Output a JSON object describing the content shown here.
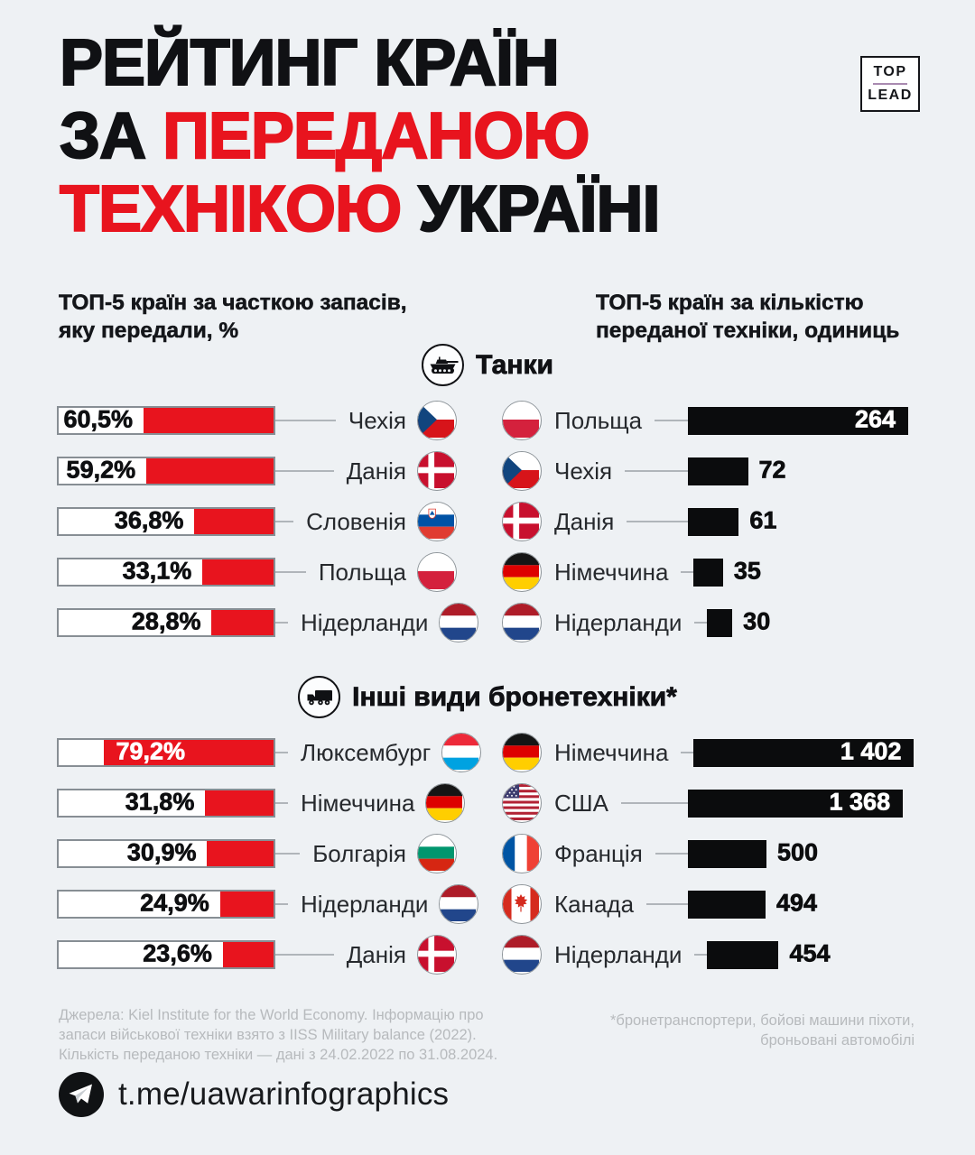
{
  "title": {
    "line1_black": "РЕЙТИНГ КРАЇН",
    "line2_black": "ЗА ",
    "line2_red": "ПЕРЕДАНОЮ",
    "line3_red": "ТЕХНІКОЮ ",
    "line3_black": "УКРАЇНІ"
  },
  "logo": {
    "top": "TOP",
    "lead": "LEAD"
  },
  "col_headers": {
    "left1": "ТОП-5 країн за часткою запасів,",
    "left2": "яку передали, %",
    "right1": "ТОП-5 країн за кількістю",
    "right2": "переданої техніки, одиниць"
  },
  "sections": {
    "tanks_title": "Танки",
    "armor_title": "Інші види бронетехніки*"
  },
  "colors": {
    "background": "#eef1f4",
    "red": "#e8141e",
    "black_bar": "#0b0c0d",
    "muted_gray": "#b7babd"
  },
  "chart_data": [
    {
      "id": "tanks_share",
      "kind": "share",
      "type": "bar",
      "title": "Танки — ТОП-5 країн за часткою запасів, яку передали, %",
      "categories": [
        "Чехія",
        "Данія",
        "Словенія",
        "Польща",
        "Нідерланди"
      ],
      "values": [
        60.5,
        59.2,
        36.8,
        33.1,
        28.8
      ],
      "value_labels": [
        "60,5%",
        "59,2%",
        "36,8%",
        "33,1%",
        "28,8%"
      ],
      "flags": [
        "cz",
        "dk",
        "si",
        "pl",
        "nl"
      ],
      "label_inside": [
        false,
        false,
        false,
        false,
        false
      ],
      "xlim": [
        0,
        100
      ],
      "unit": "%"
    },
    {
      "id": "tanks_count",
      "kind": "count",
      "type": "bar",
      "title": "Танки — ТОП-5 країн за кількістю переданої техніки, одиниць",
      "categories": [
        "Польща",
        "Чехія",
        "Данія",
        "Німеччина",
        "Нідерланди"
      ],
      "values": [
        264,
        72,
        61,
        35,
        30
      ],
      "value_labels": [
        "264",
        "72",
        "61",
        "35",
        "30"
      ],
      "flags": [
        "pl",
        "cz",
        "dk",
        "de",
        "nl"
      ],
      "label_inside": [
        true,
        false,
        false,
        false,
        false
      ],
      "max": 264,
      "unit": "одиниць"
    },
    {
      "id": "armor_share",
      "kind": "share",
      "type": "bar",
      "title": "Інші види бронетехніки — ТОП-5 країн за часткою запасів, яку передали, %",
      "categories": [
        "Люксембург",
        "Німеччина",
        "Болгарія",
        "Нідерланди",
        "Данія"
      ],
      "values": [
        79.2,
        31.8,
        30.9,
        24.9,
        23.6
      ],
      "value_labels": [
        "79,2%",
        "31,8%",
        "30,9%",
        "24,9%",
        "23,6%"
      ],
      "flags": [
        "lu",
        "de",
        "bg",
        "nl",
        "dk"
      ],
      "label_inside": [
        true,
        false,
        false,
        false,
        false
      ],
      "xlim": [
        0,
        100
      ],
      "unit": "%"
    },
    {
      "id": "armor_count",
      "kind": "count",
      "type": "bar",
      "title": "Інші види бронетехніки — ТОП-5 країн за кількістю переданої техніки, одиниць",
      "categories": [
        "Німеччина",
        "США",
        "Франція",
        "Канада",
        "Нідерланди"
      ],
      "values": [
        1402,
        1368,
        500,
        494,
        454
      ],
      "value_labels": [
        "1 402",
        "1 368",
        "500",
        "494",
        "454"
      ],
      "flags": [
        "de",
        "us",
        "fr",
        "ca",
        "nl"
      ],
      "label_inside": [
        true,
        true,
        false,
        false,
        false
      ],
      "max": 1402,
      "unit": "одиниць"
    }
  ],
  "footer": {
    "source_lines": [
      "Джерела: Kiel Institute for the World Economy. Інформацію про",
      "запаси військової техніки взято з IISS Military balance (2022).",
      "Кількість переданою техніки — дані з 24.02.2022 по 31.08.2024."
    ],
    "note_lines": [
      "*бронетранспортери, бойові машини піхоти,",
      "броньовані автомобілі"
    ]
  },
  "telegram": {
    "handle": "t.me/uawarinfographics"
  }
}
